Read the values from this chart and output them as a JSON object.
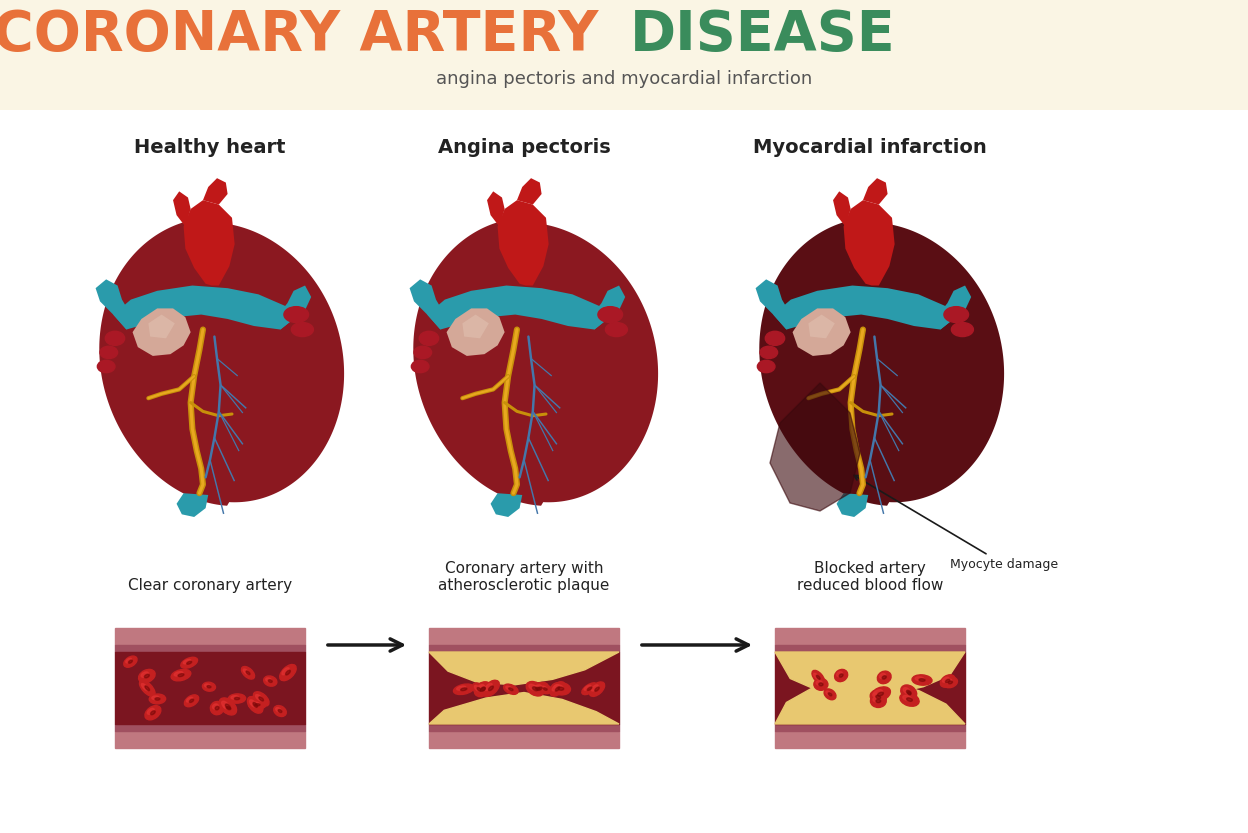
{
  "title_part1": "CORONARY ARTERY ",
  "title_part2": "DISEASE",
  "subtitle": "angina pectoris and myocardial infarction",
  "title_color1": "#E8713A",
  "title_color2": "#3A8C5C",
  "subtitle_color": "#555555",
  "bg_header_color": "#FAF5E4",
  "bg_main_color": "#FFFFFF",
  "section_labels": [
    "Healthy heart",
    "Angina pectoris",
    "Myocardial infarction"
  ],
  "artery_labels": [
    "Clear coronary artery",
    "Coronary artery with\natherosclerotic plaque",
    "Blocked artery\nreduced blood flow"
  ],
  "myocyte_label": "Myocyte damage",
  "label_color": "#222222",
  "header_line_color": "#CCCCCC",
  "arrow_color": "#1A1A1A",
  "artery_wall_outer": "#C07880",
  "artery_wall_inner": "#A05060",
  "artery_lumen_color": "#7B1520",
  "rbc_color": "#C42020",
  "rbc_bright": "#E03030",
  "plaque_color": "#E8C870",
  "plaque_shadow": "#C8A040",
  "heart_red": "#8B1820",
  "heart_red_dark": "#5A0E14",
  "heart_red_bright": "#AA2028",
  "heart_teal": "#2A9BAB",
  "heart_teal_dark": "#1A7A8A",
  "heart_beige": "#D4A898",
  "heart_vessel_yellow": "#C8900A",
  "heart_vessel_blue": "#4477AA",
  "heart_aorta_red": "#C01818"
}
